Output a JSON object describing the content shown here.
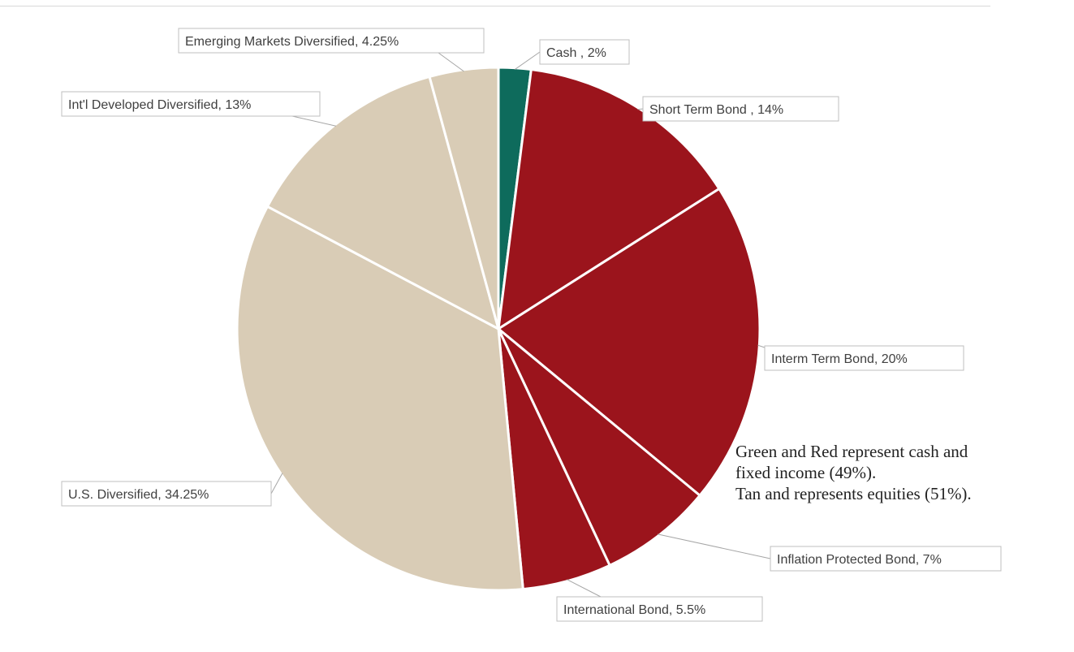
{
  "chart_data": {
    "type": "pie",
    "slices": [
      {
        "name": "Cash",
        "label": "Cash , 2%",
        "value": 2,
        "color": "#0e6b5c"
      },
      {
        "name": "Short Term Bond",
        "label": "Short Term Bond , 14%",
        "value": 14,
        "color": "#9b141c"
      },
      {
        "name": "Interm Term Bond",
        "label": "Interm Term Bond, 20%",
        "value": 20,
        "color": "#9b141c"
      },
      {
        "name": "Inflation Protected Bond",
        "label": "Inflation Protected Bond, 7%",
        "value": 7,
        "color": "#9b141c"
      },
      {
        "name": "International Bond",
        "label": "International Bond, 5.5%",
        "value": 5.5,
        "color": "#9b141c"
      },
      {
        "name": "U.S. Diversified",
        "label": "U.S. Diversified, 34.25%",
        "value": 34.25,
        "color": "#d9ccb6"
      },
      {
        "name": "Int'l Developed Diversified",
        "label": "Int'l Developed Diversified, 13%",
        "value": 13,
        "color": "#d9ccb6"
      },
      {
        "name": "Emerging Markets Diversified",
        "label": "Emerging Markets Diversified, 4.25%",
        "value": 4.25,
        "color": "#d9ccb6"
      }
    ],
    "start": "12 o'clock",
    "direction": "clockwise",
    "data_labels": "outside with leader lines"
  },
  "note": {
    "line1": "Green and Red represent cash and",
    "line2": "fixed income (49%).",
    "line3": "Tan and represents equities (51%)."
  }
}
